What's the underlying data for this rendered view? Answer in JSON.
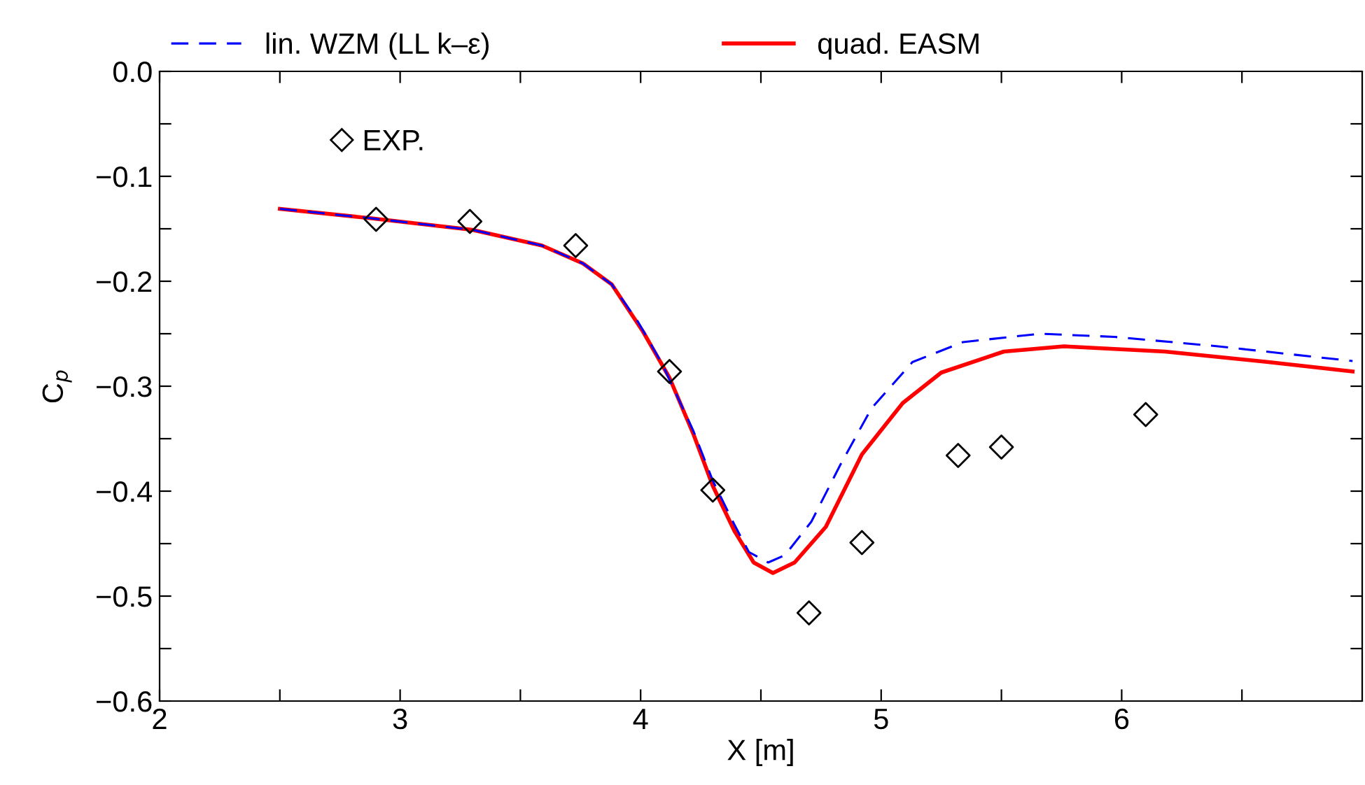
{
  "chart_data": {
    "type": "line",
    "xlabel": "X [m]",
    "ylabel": "C$_{p}$",
    "legend": "top",
    "grid": false,
    "xlim": [
      2,
      7
    ],
    "ylim": [
      -0.6,
      0.0
    ],
    "xticks": [
      2,
      {
        "value": 2.5,
        "label": null
      },
      3,
      {
        "value": 3.5,
        "label": null
      },
      4,
      {
        "value": 4.5,
        "label": null
      },
      5,
      {
        "value": 5.5,
        "label": null
      },
      6,
      {
        "value": 6.5,
        "label": null
      }
    ],
    "yticks": [
      {
        "value": -0.6,
        "label": "−0.6"
      },
      {
        "value": -0.55,
        "label": null
      },
      {
        "value": -0.5,
        "label": "−0.5"
      },
      {
        "value": -0.45,
        "label": null
      },
      {
        "value": -0.4,
        "label": "−0.4"
      },
      {
        "value": -0.35,
        "label": null
      },
      {
        "value": -0.3,
        "label": "−0.3"
      },
      {
        "value": -0.25,
        "label": null
      },
      {
        "value": -0.2,
        "label": "−0.2"
      },
      {
        "value": -0.15,
        "label": null
      },
      {
        "value": -0.1,
        "label": "−0.1"
      },
      {
        "value": -0.05,
        "label": null
      },
      {
        "value": 0.0,
        "label": "0.0"
      }
    ],
    "series": [
      {
        "name": "lin. WZM (LL k–ε)",
        "color": "#0000ff",
        "line_style": "dashed",
        "x": [
          2.5,
          2.88,
          3.3,
          3.59,
          3.76,
          3.88,
          3.99,
          4.09,
          4.22,
          4.3,
          4.39,
          4.45,
          4.53,
          4.6,
          4.71,
          4.83,
          4.96,
          5.13,
          5.34,
          5.66,
          5.97,
          6.4,
          6.96
        ],
        "values": [
          -0.131,
          -0.14,
          -0.151,
          -0.166,
          -0.183,
          -0.203,
          -0.239,
          -0.279,
          -0.343,
          -0.39,
          -0.432,
          -0.458,
          -0.468,
          -0.461,
          -0.429,
          -0.375,
          -0.321,
          -0.277,
          -0.258,
          -0.25,
          -0.253,
          -0.262,
          -0.276
        ]
      },
      {
        "name": "quad. EASM",
        "color": "#ff0000",
        "line_style": "solid",
        "x": [
          2.5,
          2.88,
          3.3,
          3.59,
          3.76,
          3.88,
          4.01,
          4.12,
          4.22,
          4.3,
          4.39,
          4.47,
          4.55,
          4.64,
          4.77,
          4.92,
          5.09,
          5.25,
          5.51,
          5.76,
          6.18,
          6.61,
          6.96
        ],
        "values": [
          -0.131,
          -0.14,
          -0.151,
          -0.166,
          -0.183,
          -0.203,
          -0.248,
          -0.292,
          -0.346,
          -0.395,
          -0.438,
          -0.468,
          -0.478,
          -0.468,
          -0.434,
          -0.365,
          -0.316,
          -0.287,
          -0.267,
          -0.262,
          -0.267,
          -0.277,
          -0.286
        ]
      },
      {
        "name": "EXP.",
        "type": "scatter",
        "color": "#000000",
        "marker": "diamond",
        "x": [
          2.9,
          3.29,
          3.73,
          4.12,
          4.3,
          4.7,
          4.92,
          5.32,
          5.5,
          6.1
        ],
        "values": [
          -0.141,
          -0.143,
          -0.166,
          -0.286,
          -0.399,
          -0.516,
          -0.449,
          -0.366,
          -0.358,
          -0.327
        ]
      }
    ]
  }
}
